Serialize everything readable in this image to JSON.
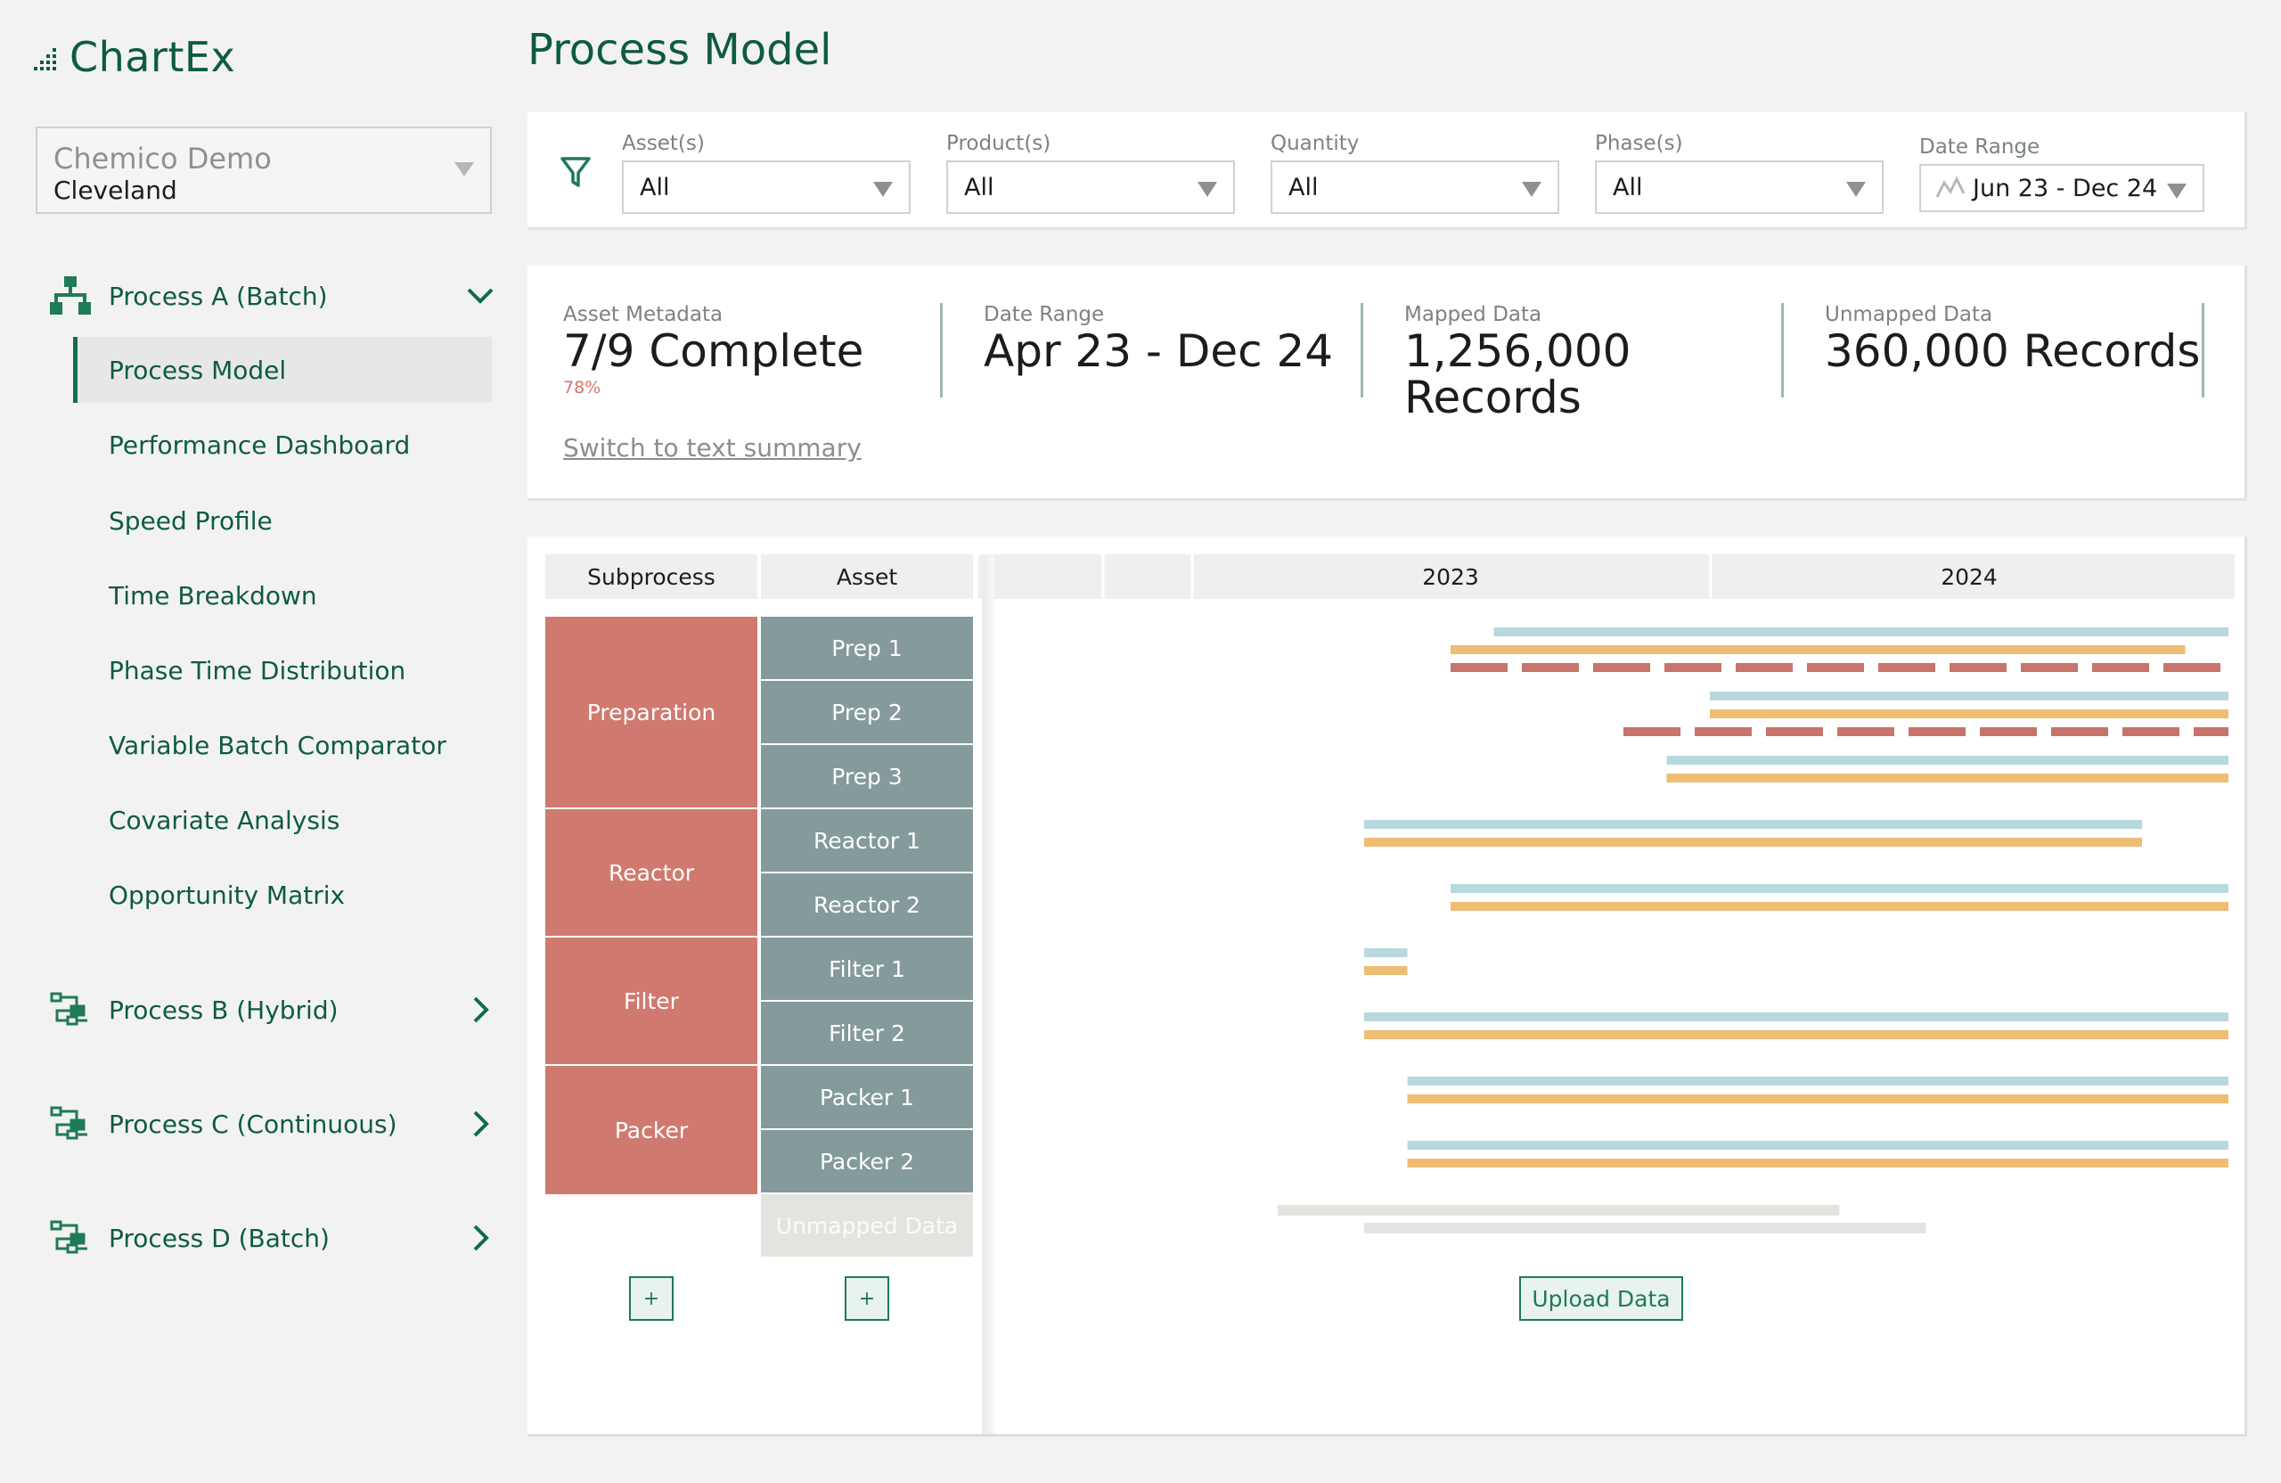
{
  "app": {
    "name": "ChartEx"
  },
  "org": {
    "name": "Chemico Demo",
    "site": "Cleveland"
  },
  "sidebar": {
    "processes": [
      {
        "label": "Process A (Batch)",
        "expanded": true
      },
      {
        "label": "Process B (Hybrid)",
        "expanded": false
      },
      {
        "label": "Process C (Continuous)",
        "expanded": false
      },
      {
        "label": "Process D (Batch)",
        "expanded": false
      }
    ],
    "nav": [
      {
        "label": "Process Model",
        "active": true
      },
      {
        "label": "Performance Dashboard",
        "active": false
      },
      {
        "label": "Speed Profile",
        "active": false
      },
      {
        "label": "Time Breakdown",
        "active": false
      },
      {
        "label": "Phase Time Distribution",
        "active": false
      },
      {
        "label": "Variable Batch Comparator",
        "active": false
      },
      {
        "label": "Covariate Analysis",
        "active": false
      },
      {
        "label": "Opportunity Matrix",
        "active": false
      }
    ]
  },
  "page": {
    "title": "Process Model"
  },
  "filters": [
    {
      "label": "Asset(s)",
      "value": "All"
    },
    {
      "label": "Product(s)",
      "value": "All"
    },
    {
      "label": "Quantity",
      "value": "All"
    },
    {
      "label": "Phase(s)",
      "value": "All"
    },
    {
      "label": "Date Range",
      "value": "Jun 23 - Dec 24"
    }
  ],
  "summary": {
    "metrics": [
      {
        "label": "Asset Metadata",
        "value": "7/9 Complete",
        "sub": "78%"
      },
      {
        "label": "Date Range",
        "value": "Apr 23 - Dec 24"
      },
      {
        "label": "Mapped Data",
        "value": "1,256,000 Records"
      },
      {
        "label": "Unmapped Data",
        "value": "360,000 Records"
      }
    ],
    "switch_link": "Switch to text summary"
  },
  "gantt": {
    "headers": {
      "subprocess": "Subprocess",
      "asset": "Asset"
    },
    "years": [
      "2023",
      "2024"
    ],
    "subprocesses": [
      {
        "label": "Preparation",
        "rows": 3
      },
      {
        "label": "Reactor",
        "rows": 2
      },
      {
        "label": "Filter",
        "rows": 2
      },
      {
        "label": "Packer",
        "rows": 2
      }
    ],
    "assets": [
      "Prep 1",
      "Prep 2",
      "Prep 3",
      "Reactor 1",
      "Reactor 2",
      "Filter 1",
      "Filter 2",
      "Packer 1",
      "Packer 2"
    ],
    "unmapped_label": "Unmapped Data",
    "add_label": "+",
    "upload_label": "Upload Data",
    "colors": {
      "subprocess": "#d07a6f",
      "asset": "#859a9a",
      "bar_blue": "#b7d8dc",
      "bar_orange": "#efbd73",
      "bar_red": "#c8746a",
      "bar_gray": "#e5e3e0"
    },
    "timeline_bars": [
      {
        "row": 0,
        "kind": "blue",
        "start": "2023-08",
        "end": "2024-12"
      },
      {
        "row": 0,
        "kind": "orange",
        "start": "2023-07",
        "end": "2024-11"
      },
      {
        "row": 0,
        "kind": "red-dashed",
        "start": "2023-07",
        "end": "2024-12"
      },
      {
        "row": 1,
        "kind": "blue",
        "start": "2024-01",
        "end": "2024-12"
      },
      {
        "row": 1,
        "kind": "orange",
        "start": "2024-01",
        "end": "2024-12"
      },
      {
        "row": 1,
        "kind": "red-dashed",
        "start": "2023-11",
        "end": "2024-12"
      },
      {
        "row": 2,
        "kind": "blue",
        "start": "2023-12",
        "end": "2024-12"
      },
      {
        "row": 2,
        "kind": "orange",
        "start": "2023-12",
        "end": "2024-12"
      },
      {
        "row": 3,
        "kind": "blue",
        "start": "2023-05",
        "end": "2024-10"
      },
      {
        "row": 3,
        "kind": "orange",
        "start": "2023-05",
        "end": "2024-10"
      },
      {
        "row": 4,
        "kind": "blue",
        "start": "2023-07",
        "end": "2024-12"
      },
      {
        "row": 4,
        "kind": "orange",
        "start": "2023-07",
        "end": "2024-12"
      },
      {
        "row": 5,
        "kind": "blue",
        "start": "2023-05",
        "end": "2023-05"
      },
      {
        "row": 5,
        "kind": "orange",
        "start": "2023-05",
        "end": "2023-05"
      },
      {
        "row": 6,
        "kind": "blue",
        "start": "2023-05",
        "end": "2024-12"
      },
      {
        "row": 6,
        "kind": "orange",
        "start": "2023-05",
        "end": "2024-12"
      },
      {
        "row": 7,
        "kind": "blue",
        "start": "2023-06",
        "end": "2024-12"
      },
      {
        "row": 7,
        "kind": "orange",
        "start": "2023-06",
        "end": "2024-12"
      },
      {
        "row": 8,
        "kind": "blue",
        "start": "2023-06",
        "end": "2024-12"
      },
      {
        "row": 8,
        "kind": "orange",
        "start": "2023-06",
        "end": "2024-12"
      },
      {
        "row": 9,
        "kind": "gray",
        "start": "2023-03",
        "end": "2024-03"
      },
      {
        "row": 9,
        "kind": "gray",
        "start": "2023-05",
        "end": "2024-05"
      }
    ]
  }
}
